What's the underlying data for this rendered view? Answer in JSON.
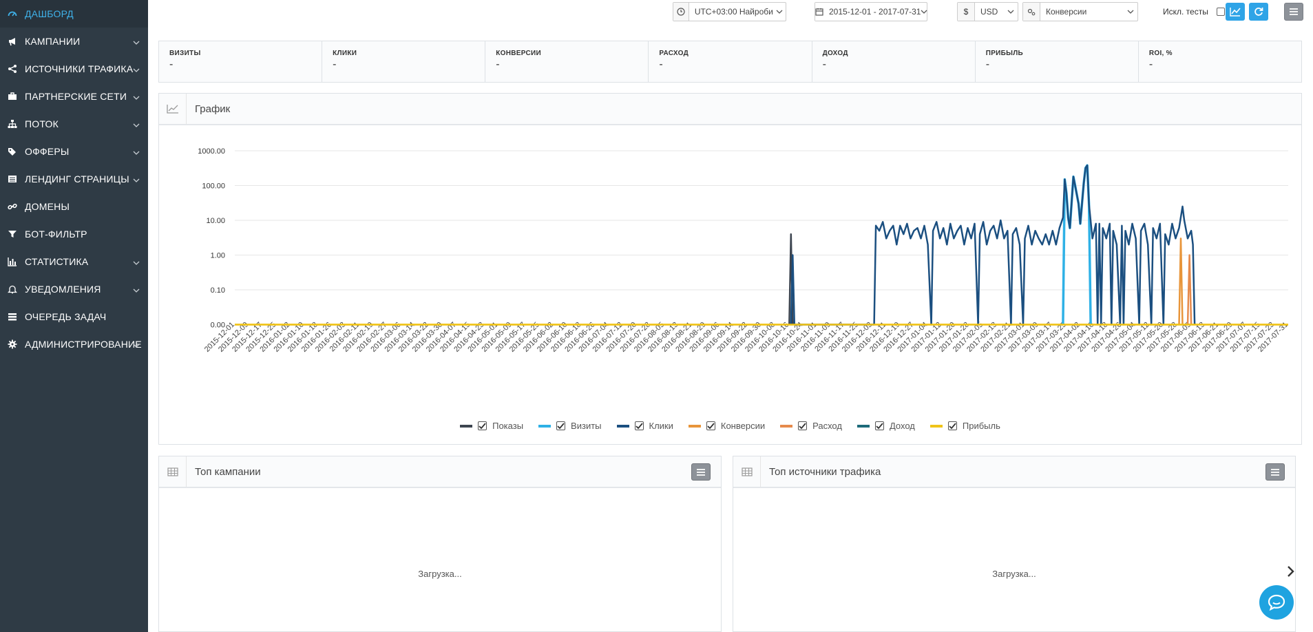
{
  "sidebar": {
    "items": [
      {
        "label": "ДАШБОРД",
        "icon": "dashboard-icon",
        "active": true,
        "chevron": false
      },
      {
        "label": "КАМПАНИИ",
        "icon": "megaphone-icon",
        "chevron": true
      },
      {
        "label": "ИСТОЧНИКИ ТРАФИКА",
        "icon": "share-icon",
        "chevron": true
      },
      {
        "label": "ПАРТНЕРСКИЕ СЕТИ",
        "icon": "briefcase-icon",
        "chevron": true
      },
      {
        "label": "ПОТОК",
        "icon": "sitemap-icon",
        "chevron": true
      },
      {
        "label": "ОФФЕРЫ",
        "icon": "tags-icon",
        "chevron": true
      },
      {
        "label": "ЛЕНДИНГ СТРАНИЦЫ",
        "icon": "list-icon",
        "chevron": true
      },
      {
        "label": "ДОМЕНЫ",
        "icon": "link-icon",
        "chevron": false
      },
      {
        "label": "БОТ-ФИЛЬТР",
        "icon": "filter-icon",
        "chevron": false
      },
      {
        "label": "СТАТИСТИКА",
        "icon": "bar-chart-icon",
        "chevron": true
      },
      {
        "label": "УВЕДОМЛЕНИЯ",
        "icon": "bell-icon",
        "chevron": true
      },
      {
        "label": "ОЧЕРЕДЬ ЗАДАЧ",
        "icon": "tasks-icon",
        "chevron": false
      },
      {
        "label": "АДМИНИСТРИРОВАНИЕ",
        "icon": "gear-icon",
        "chevron": true
      }
    ]
  },
  "topbar": {
    "timezone": "UTC+03:00 Найроби",
    "daterange": "2015-12-01 - 2017-07-31",
    "currency": "USD",
    "currency_symbol": "$",
    "metric": "Конверсии",
    "exclude_tests_label": "Искл. тесты"
  },
  "stats": [
    {
      "title": "ВИЗИТЫ",
      "value": "-"
    },
    {
      "title": "КЛИКИ",
      "value": "-"
    },
    {
      "title": "КОНВЕРСИИ",
      "value": "-"
    },
    {
      "title": "РАСХОД",
      "value": "-"
    },
    {
      "title": "ДОХОД",
      "value": "-"
    },
    {
      "title": "ПРИБЫЛЬ",
      "value": "-"
    },
    {
      "title": "ROI, %",
      "value": "-"
    }
  ],
  "graph_panel": {
    "title": "График"
  },
  "top_campaigns": {
    "title": "Топ кампании",
    "loading": "Загрузка..."
  },
  "top_sources": {
    "title": "Топ источники трафика",
    "loading": "Загрузка..."
  },
  "colors": {
    "accent": "#2fa4e7",
    "sidebar_bg": "#2f3b45",
    "active_text": "#3fb1e8"
  },
  "chart_data": {
    "type": "line",
    "title": "",
    "xlabel": "",
    "ylabel": "",
    "y_scale": "log",
    "y_ticks": [
      "1000.00",
      "100.00",
      "10.00",
      "1.00",
      "0.10",
      "0.00"
    ],
    "x_ticks": [
      "2015-12-01",
      "2015-12-09",
      "2015-12-17",
      "2015-12-25",
      "2016-01-02",
      "2016-01-10",
      "2016-01-18",
      "2016-01-26",
      "2016-02-03",
      "2016-02-11",
      "2016-02-19",
      "2016-02-27",
      "2016-03-06",
      "2016-03-14",
      "2016-03-22",
      "2016-03-30",
      "2016-04-07",
      "2016-04-15",
      "2016-04-23",
      "2016-05-01",
      "2016-05-09",
      "2016-05-17",
      "2016-05-25",
      "2016-06-02",
      "2016-06-10",
      "2016-06-18",
      "2016-06-26",
      "2016-07-04",
      "2016-07-12",
      "2016-07-20",
      "2016-07-28",
      "2016-08-05",
      "2016-08-13",
      "2016-08-21",
      "2016-08-29",
      "2016-09-06",
      "2016-09-14",
      "2016-09-22",
      "2016-09-30",
      "2016-10-08",
      "2016-10-16",
      "2016-10-24",
      "2016-11-01",
      "2016-11-09",
      "2016-11-17",
      "2016-11-25",
      "2016-12-03",
      "2016-12-11",
      "2016-12-19",
      "2016-12-27",
      "2017-01-04",
      "2017-01-12",
      "2017-01-20",
      "2017-01-28",
      "2017-02-05",
      "2017-02-13",
      "2017-02-21",
      "2017-03-01",
      "2017-03-09",
      "2017-03-17",
      "2017-03-25",
      "2017-04-02",
      "2017-04-10",
      "2017-04-18",
      "2017-04-26",
      "2017-05-04",
      "2017-05-12",
      "2017-05-20",
      "2017-05-28",
      "2017-06-05",
      "2017-06-13",
      "2017-06-21",
      "2017-06-29",
      "2017-07-07",
      "2017-07-15",
      "2017-07-23",
      "2017-07-31"
    ],
    "legend_position": "bottom",
    "series": [
      {
        "name": "Показы",
        "color": "#3d4550",
        "points": [
          [
            "2016-10-16",
            0
          ],
          [
            "2016-10-17",
            4
          ],
          [
            "2016-10-18",
            0
          ]
        ]
      },
      {
        "name": "Визиты",
        "color": "#2fb1e6",
        "points": [
          [
            "2017-03-23",
            0
          ],
          [
            "2017-03-24",
            150
          ],
          [
            "2017-03-25",
            60
          ],
          [
            "2017-03-26",
            12
          ],
          [
            "2017-03-27",
            6
          ],
          [
            "2017-03-29",
            180
          ],
          [
            "2017-03-30",
            100
          ],
          [
            "2017-04-01",
            30
          ],
          [
            "2017-04-02",
            8
          ],
          [
            "2017-04-04",
            120
          ],
          [
            "2017-04-05",
            320
          ],
          [
            "2017-04-06",
            380
          ],
          [
            "2017-04-07",
            30
          ],
          [
            "2017-04-08",
            0
          ]
        ]
      },
      {
        "name": "Клики",
        "color": "#1b4f80",
        "points": [
          [
            "2016-10-17",
            0
          ],
          [
            "2016-10-18",
            1
          ],
          [
            "2016-10-19",
            0
          ],
          [
            "2016-12-04",
            0
          ],
          [
            "2016-12-05",
            7
          ],
          [
            "2016-12-07",
            5
          ],
          [
            "2016-12-09",
            9
          ],
          [
            "2016-12-11",
            3
          ],
          [
            "2016-12-13",
            5
          ],
          [
            "2016-12-15",
            7
          ],
          [
            "2016-12-17",
            2
          ],
          [
            "2016-12-19",
            7
          ],
          [
            "2016-12-21",
            4
          ],
          [
            "2016-12-23",
            8
          ],
          [
            "2016-12-25",
            3
          ],
          [
            "2016-12-27",
            5
          ],
          [
            "2016-12-29",
            6
          ],
          [
            "2016-12-31",
            3
          ],
          [
            "2017-01-02",
            7
          ],
          [
            "2017-01-04",
            2
          ],
          [
            "2017-01-06",
            0
          ],
          [
            "2017-01-07",
            5
          ],
          [
            "2017-01-09",
            9
          ],
          [
            "2017-01-11",
            3
          ],
          [
            "2017-01-13",
            6
          ],
          [
            "2017-01-15",
            2
          ],
          [
            "2017-01-17",
            8
          ],
          [
            "2017-01-19",
            3
          ],
          [
            "2017-01-21",
            5
          ],
          [
            "2017-01-23",
            7
          ],
          [
            "2017-01-25",
            2
          ],
          [
            "2017-01-27",
            6
          ],
          [
            "2017-01-29",
            3
          ],
          [
            "2017-01-31",
            8
          ],
          [
            "2017-02-02",
            0
          ],
          [
            "2017-02-03",
            4
          ],
          [
            "2017-02-05",
            9
          ],
          [
            "2017-02-07",
            2
          ],
          [
            "2017-02-09",
            5
          ],
          [
            "2017-02-11",
            7
          ],
          [
            "2017-02-13",
            3
          ],
          [
            "2017-02-15",
            10
          ],
          [
            "2017-02-17",
            3
          ],
          [
            "2017-02-19",
            5
          ],
          [
            "2017-02-21",
            0
          ],
          [
            "2017-02-22",
            4
          ],
          [
            "2017-02-24",
            6
          ],
          [
            "2017-02-26",
            2
          ],
          [
            "2017-02-28",
            0
          ],
          [
            "2017-03-01",
            3
          ],
          [
            "2017-03-03",
            7
          ],
          [
            "2017-03-05",
            2
          ],
          [
            "2017-03-07",
            5
          ],
          [
            "2017-03-09",
            3
          ],
          [
            "2017-03-11",
            2
          ],
          [
            "2017-03-13",
            4
          ],
          [
            "2017-03-15",
            2
          ],
          [
            "2017-03-17",
            5
          ],
          [
            "2017-03-19",
            2
          ],
          [
            "2017-03-21",
            6
          ],
          [
            "2017-03-23",
            12
          ],
          [
            "2017-03-24",
            150
          ],
          [
            "2017-03-25",
            60
          ],
          [
            "2017-03-26",
            12
          ],
          [
            "2017-03-27",
            6
          ],
          [
            "2017-03-29",
            180
          ],
          [
            "2017-03-30",
            100
          ],
          [
            "2017-04-01",
            30
          ],
          [
            "2017-04-02",
            8
          ],
          [
            "2017-04-04",
            120
          ],
          [
            "2017-04-05",
            320
          ],
          [
            "2017-04-06",
            380
          ],
          [
            "2017-04-07",
            30
          ],
          [
            "2017-04-09",
            3
          ],
          [
            "2017-04-11",
            8
          ],
          [
            "2017-04-12",
            0
          ],
          [
            "2017-04-13",
            8
          ],
          [
            "2017-04-14",
            0
          ],
          [
            "2017-04-15",
            6
          ],
          [
            "2017-04-17",
            3
          ],
          [
            "2017-04-19",
            8
          ],
          [
            "2017-04-20",
            0
          ],
          [
            "2017-04-21",
            5
          ],
          [
            "2017-04-23",
            2
          ],
          [
            "2017-04-25",
            0
          ],
          [
            "2017-04-26",
            7
          ],
          [
            "2017-04-27",
            0
          ],
          [
            "2017-04-28",
            5
          ],
          [
            "2017-04-30",
            2
          ],
          [
            "2017-05-02",
            8
          ],
          [
            "2017-05-04",
            3
          ],
          [
            "2017-05-06",
            0
          ],
          [
            "2017-05-07",
            5
          ],
          [
            "2017-05-09",
            8
          ],
          [
            "2017-05-11",
            2
          ],
          [
            "2017-05-13",
            0
          ],
          [
            "2017-05-14",
            6
          ],
          [
            "2017-05-16",
            3
          ],
          [
            "2017-05-18",
            8
          ],
          [
            "2017-05-20",
            0
          ],
          [
            "2017-05-21",
            4
          ],
          [
            "2017-05-23",
            2
          ],
          [
            "2017-05-25",
            8
          ],
          [
            "2017-05-27",
            3
          ],
          [
            "2017-05-29",
            6
          ],
          [
            "2017-05-31",
            25
          ],
          [
            "2017-06-01",
            10
          ],
          [
            "2017-06-03",
            3
          ],
          [
            "2017-06-05",
            5
          ],
          [
            "2017-06-06",
            2
          ],
          [
            "2017-06-07",
            0
          ]
        ]
      },
      {
        "name": "Конверсии",
        "color": "#e8953a",
        "points": [
          [
            "2017-05-29",
            0
          ],
          [
            "2017-05-30",
            3
          ],
          [
            "2017-05-31",
            0
          ]
        ]
      },
      {
        "name": "Расход",
        "color": "#e68a4c",
        "points": [
          [
            "2017-06-03",
            0
          ],
          [
            "2017-06-04",
            1
          ],
          [
            "2017-06-05",
            0
          ]
        ]
      },
      {
        "name": "Доход",
        "color": "#1d6a7a",
        "points": []
      },
      {
        "name": "Прибыль",
        "color": "#f0c419",
        "points": []
      }
    ]
  }
}
